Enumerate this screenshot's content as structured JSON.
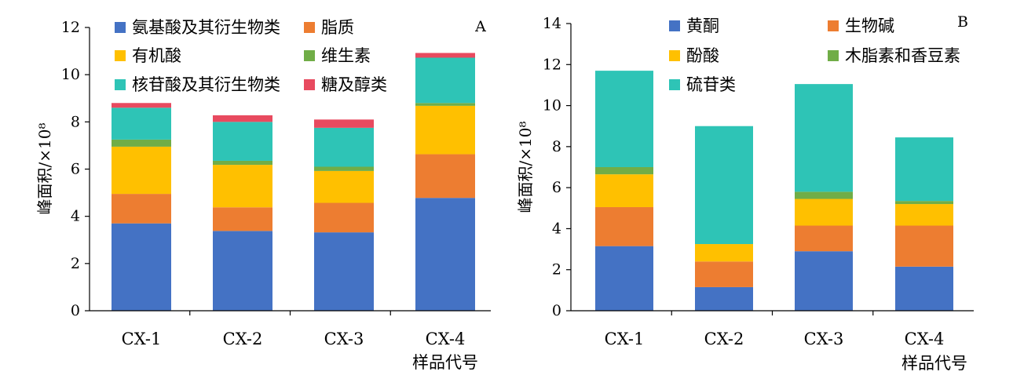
{
  "chart_data": [
    {
      "type": "bar",
      "stacked": true,
      "panel_label": "A",
      "categories": [
        "CX-1",
        "CX-2",
        "CX-3",
        "CX-4"
      ],
      "ylabel": "峰面积/×10⁸",
      "xlabel": "样品代号",
      "ylim": [
        0,
        12
      ],
      "yticks": [
        0,
        2,
        4,
        6,
        8,
        10,
        12
      ],
      "grid": false,
      "legend_placement": "top",
      "series": [
        {
          "name": "氨基酸及其衍生物类",
          "color": "#4472C4",
          "values": [
            3.7,
            3.38,
            3.32,
            4.78
          ]
        },
        {
          "name": "脂质",
          "color": "#ED7D31",
          "values": [
            1.25,
            1.0,
            1.25,
            1.85
          ]
        },
        {
          "name": "有机酸",
          "color": "#FFC000",
          "values": [
            2.0,
            1.8,
            1.35,
            2.05
          ]
        },
        {
          "name": "维生素",
          "color": "#70AD47",
          "values": [
            0.3,
            0.17,
            0.18,
            0.12
          ]
        },
        {
          "name": "核苷酸及其衍生物类",
          "color": "#2EC4B6",
          "values": [
            1.35,
            1.65,
            1.65,
            1.92
          ]
        },
        {
          "name": "糖及醇类",
          "color": "#E84A5F",
          "values": [
            0.2,
            0.28,
            0.35,
            0.2
          ]
        }
      ]
    },
    {
      "type": "bar",
      "stacked": true,
      "panel_label": "B",
      "categories": [
        "CX-1",
        "CX-2",
        "CX-3",
        "CX-4"
      ],
      "ylabel": "峰面积/×10⁸",
      "xlabel": "样品代号",
      "ylim": [
        0,
        14
      ],
      "yticks": [
        0,
        2,
        4,
        6,
        8,
        10,
        12,
        14
      ],
      "grid": false,
      "legend_placement": "top",
      "series": [
        {
          "name": "黄酮",
          "color": "#4472C4",
          "values": [
            3.15,
            1.15,
            2.9,
            2.15
          ]
        },
        {
          "name": "生物碱",
          "color": "#ED7D31",
          "values": [
            1.9,
            1.25,
            1.25,
            2.0
          ]
        },
        {
          "name": "酚酸",
          "color": "#FFC000",
          "values": [
            1.6,
            0.85,
            1.3,
            1.05
          ]
        },
        {
          "name": "木脂素和香豆素",
          "color": "#70AD47",
          "values": [
            0.35,
            0.0,
            0.35,
            0.15
          ]
        },
        {
          "name": "硫苷类",
          "color": "#2EC4B6",
          "values": [
            4.7,
            5.75,
            5.25,
            3.1
          ]
        }
      ]
    }
  ]
}
